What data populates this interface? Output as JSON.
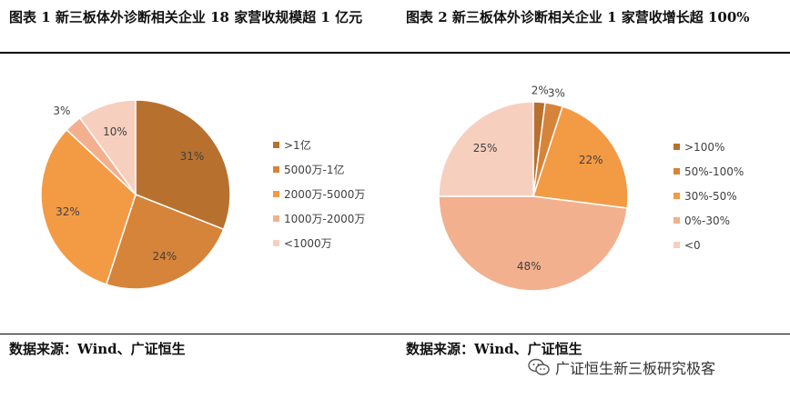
{
  "charts": {
    "left_title": "图表 1 新三板体外诊断相关企业 18 家营收规模超 1 亿元",
    "right_title": "图表 2 新三板体外诊断相关企业 1 家营收增长超 100%",
    "left_source": "数据来源：Wind、广证恒生",
    "right_source": "数据来源：Wind、广证恒生"
  },
  "watermark": {
    "text": "广证恒生新三板研究极客",
    "icon": "wechat-icon"
  },
  "chart_data": [
    {
      "type": "pie",
      "title": "图表 1 新三板体外诊断相关企业 18 家营收规模超 1 亿元",
      "legend_position": "right",
      "categories": [
        ">1亿",
        "5000万-1亿",
        "2000万-5000万",
        "1000万-2000万",
        "<1000万"
      ],
      "values": [
        31,
        24,
        32,
        3,
        10
      ],
      "labels": [
        "31%",
        "24%",
        "32%",
        "3%",
        "10%"
      ],
      "colors": [
        "#b8702f",
        "#d6843a",
        "#f39a45",
        "#f2b08e",
        "#f7cfbf"
      ]
    },
    {
      "type": "pie",
      "title": "图表 2 新三板体外诊断相关企业 1 家营收增长超 100%",
      "legend_position": "right",
      "categories": [
        ">100%",
        "50%-100%",
        "30%-50%",
        "0%-30%",
        "<0"
      ],
      "values": [
        2,
        3,
        22,
        48,
        25
      ],
      "labels": [
        "2%",
        "3%",
        "22%",
        "48%",
        "25%"
      ],
      "colors": [
        "#b8702f",
        "#d6843a",
        "#f39a45",
        "#f2b08e",
        "#f7cfbf"
      ]
    }
  ]
}
